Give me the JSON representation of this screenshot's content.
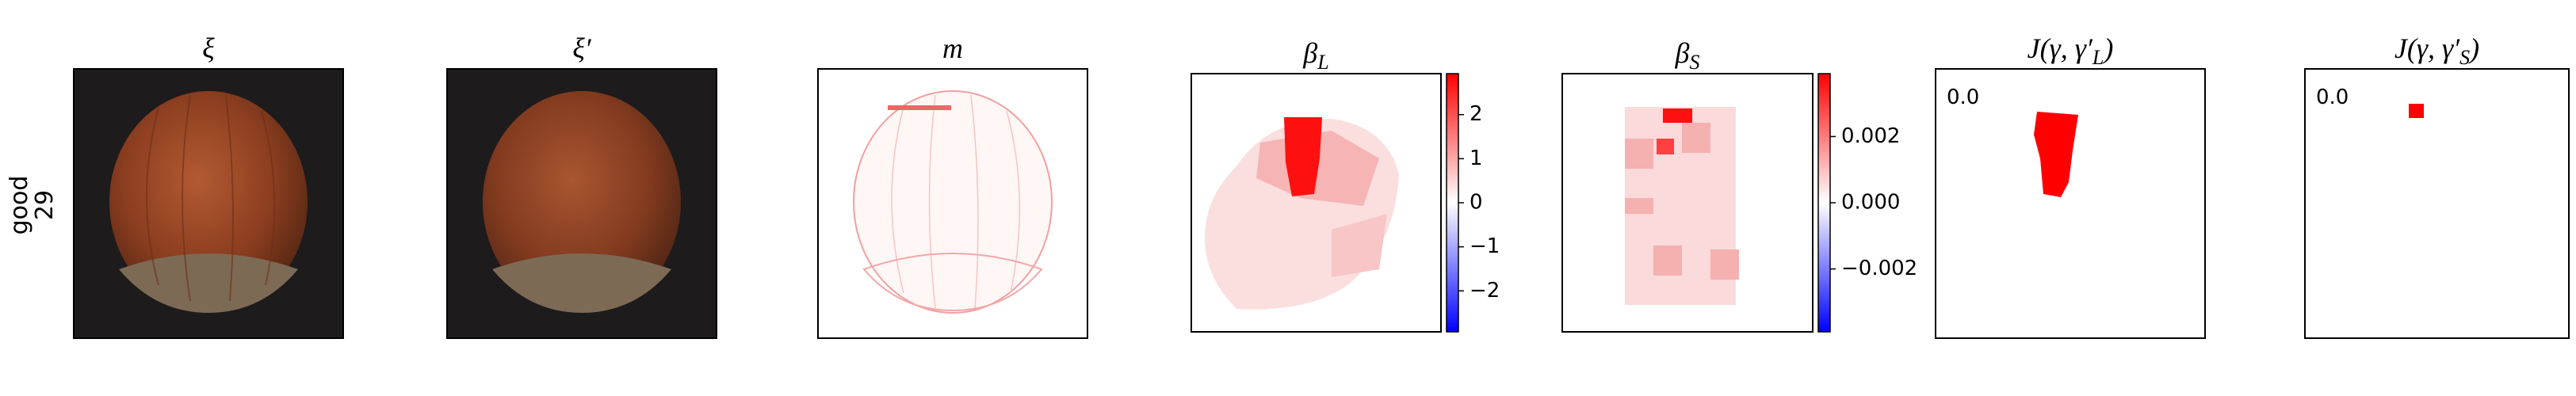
{
  "row_label": [
    "good",
    "29"
  ],
  "panels": [
    {
      "title": [
        "ξ"
      ]
    },
    {
      "title": [
        "ξ′"
      ]
    },
    {
      "title": [
        "m"
      ]
    },
    {
      "title": [
        "β",
        "L"
      ],
      "colorbar": {
        "lim": [
          -2.93,
          2.93
        ],
        "ticks": [
          2,
          1,
          0,
          {
            "value": -1,
            "label": "−1"
          },
          {
            "value": -2,
            "label": "−2"
          }
        ]
      }
    },
    {
      "title": [
        "β",
        "S"
      ],
      "colorbar": {
        "lim": [
          -0.0039,
          0.0039
        ],
        "ticks": [
          0.002,
          {
            "value": 0,
            "label": "0.000"
          },
          {
            "value": -0.002,
            "label": "−0.002"
          }
        ]
      }
    },
    {
      "title": [
        "J(γ, γ′",
        "L",
        ")"
      ],
      "annotation": "0.0"
    },
    {
      "title": [
        "J(γ, γ′",
        "S",
        ")"
      ],
      "annotation": "0.0"
    }
  ]
}
